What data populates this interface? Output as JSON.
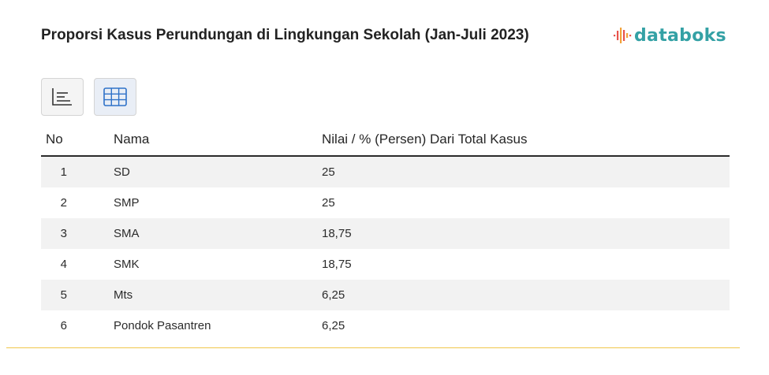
{
  "title": "Proporsi Kasus Perundungan di Lingkungan Sekolah (Jan-Juli 2023)",
  "brand": {
    "name": "databoks",
    "color": "#34a1a5",
    "icon": "databoks-logo-icon"
  },
  "view_toggle": {
    "chart_icon": "chart-view-icon",
    "table_icon": "table-view-icon",
    "active": "table"
  },
  "chart_data": {
    "type": "table",
    "title": "Proporsi Kasus Perundungan di Lingkungan Sekolah (Jan-Juli 2023)",
    "columns": [
      "No",
      "Nama",
      "Nilai / % (Persen) Dari Total Kasus"
    ],
    "rows": [
      [
        "1",
        "SD",
        "25"
      ],
      [
        "2",
        "SMP",
        "25"
      ],
      [
        "3",
        "SMA",
        "18,75"
      ],
      [
        "4",
        "SMK",
        "18,75"
      ],
      [
        "5",
        "Mts",
        "6,25"
      ],
      [
        "6",
        "Pondok Pasantren",
        "6,25"
      ]
    ],
    "categories": [
      "SD",
      "SMP",
      "SMA",
      "SMK",
      "Mts",
      "Pondok Pasantren"
    ],
    "values": [
      25,
      25,
      18.75,
      18.75,
      6.25,
      6.25
    ],
    "unit": "% (Persen) Dari Total Kasus"
  },
  "colors": {
    "stripe": "#f2f2f2",
    "header_rule": "#2b2b2b",
    "bottom_rule": "#f0c64a"
  }
}
